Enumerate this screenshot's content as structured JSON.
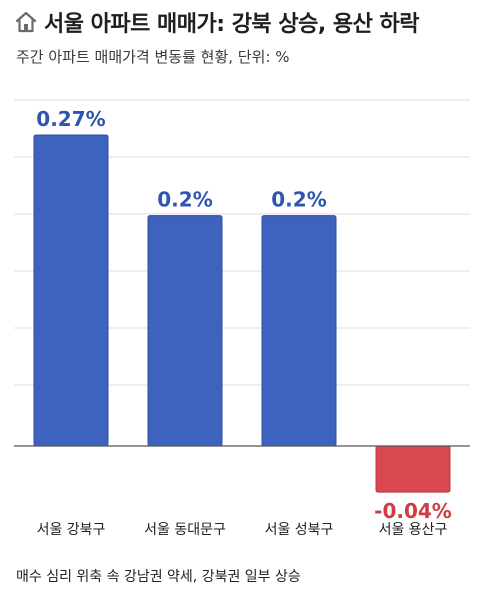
{
  "title": "서울 아파트 매매가: 강북 상승, 용산 하락",
  "subtitle": "주간 아파트 매매가격 변동률 현황, 단위: %",
  "footer": "매수 심리 위축 속 강남권 약세, 강북권 일부 상승",
  "icons": {
    "title_icon": "home-icon"
  },
  "colors": {
    "positive": "#3d63bf",
    "negative": "#d9474f",
    "grid": "#dcdcdc"
  },
  "chart_data": {
    "type": "bar",
    "categories": [
      "서울 강북구",
      "서울 동대문구",
      "서울 성북구",
      "서울 용산구"
    ],
    "values": [
      0.27,
      0.2,
      0.2,
      -0.04
    ],
    "value_labels": [
      "0.27%",
      "0.2%",
      "0.2%",
      "-0.04%"
    ],
    "title": "서울 아파트 매매가: 강북 상승, 용산 하락",
    "ylim": [
      -0.05,
      0.32
    ],
    "grid": true
  }
}
